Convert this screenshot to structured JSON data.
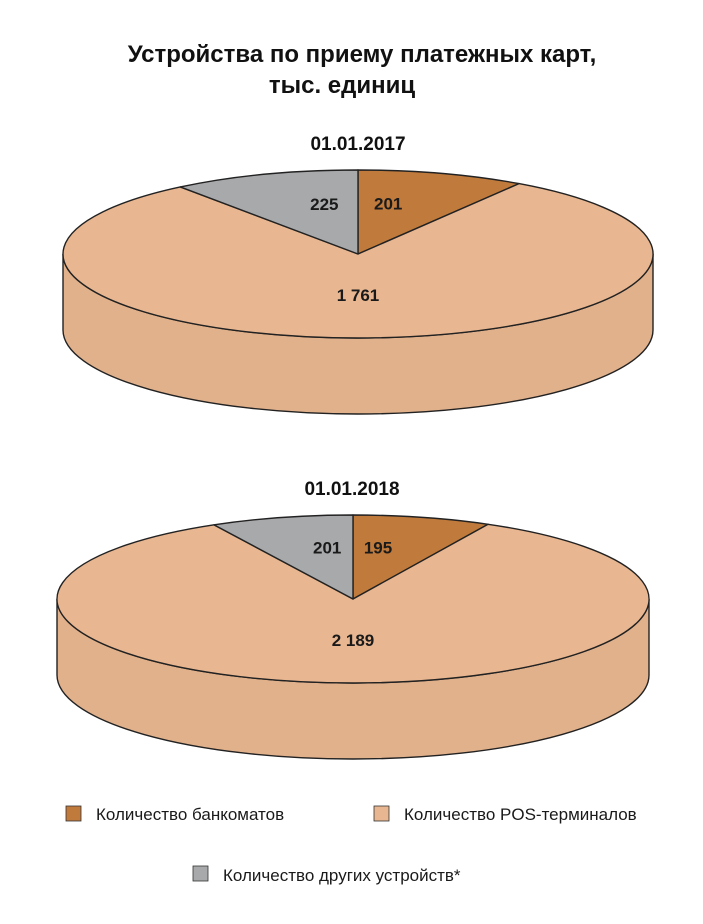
{
  "title_line1": "Устройства по приему платежных карт,",
  "title_line2": "тыс. единиц",
  "colors": {
    "atm": "#c07a3c",
    "pos": "#e8b690",
    "other": "#a8a9ab",
    "outline": "#222222"
  },
  "legend": {
    "atm": "Количество банкоматов",
    "pos": "Количество POS-терминалов",
    "other": "Количество других устройств*"
  },
  "chart_data": [
    {
      "type": "pie",
      "title": "01.01.2017",
      "slices": [
        {
          "name": "Количество банкоматов",
          "value": 201,
          "label": "201",
          "color": "#c07a3c"
        },
        {
          "name": "Количество POS-терминалов",
          "value": 1761,
          "label": "1 761",
          "color": "#e8b690"
        },
        {
          "name": "Количество других устройств*",
          "value": 225,
          "label": "225",
          "color": "#a8a9ab"
        }
      ]
    },
    {
      "type": "pie",
      "title": "01.01.2018",
      "slices": [
        {
          "name": "Количество банкоматов",
          "value": 195,
          "label": "195",
          "color": "#c07a3c"
        },
        {
          "name": "Количество POS-терминалов",
          "value": 2189,
          "label": "2 189",
          "color": "#e8b690"
        },
        {
          "name": "Количество других устройств*",
          "value": 201,
          "label": "201",
          "color": "#a8a9ab"
        }
      ]
    }
  ]
}
